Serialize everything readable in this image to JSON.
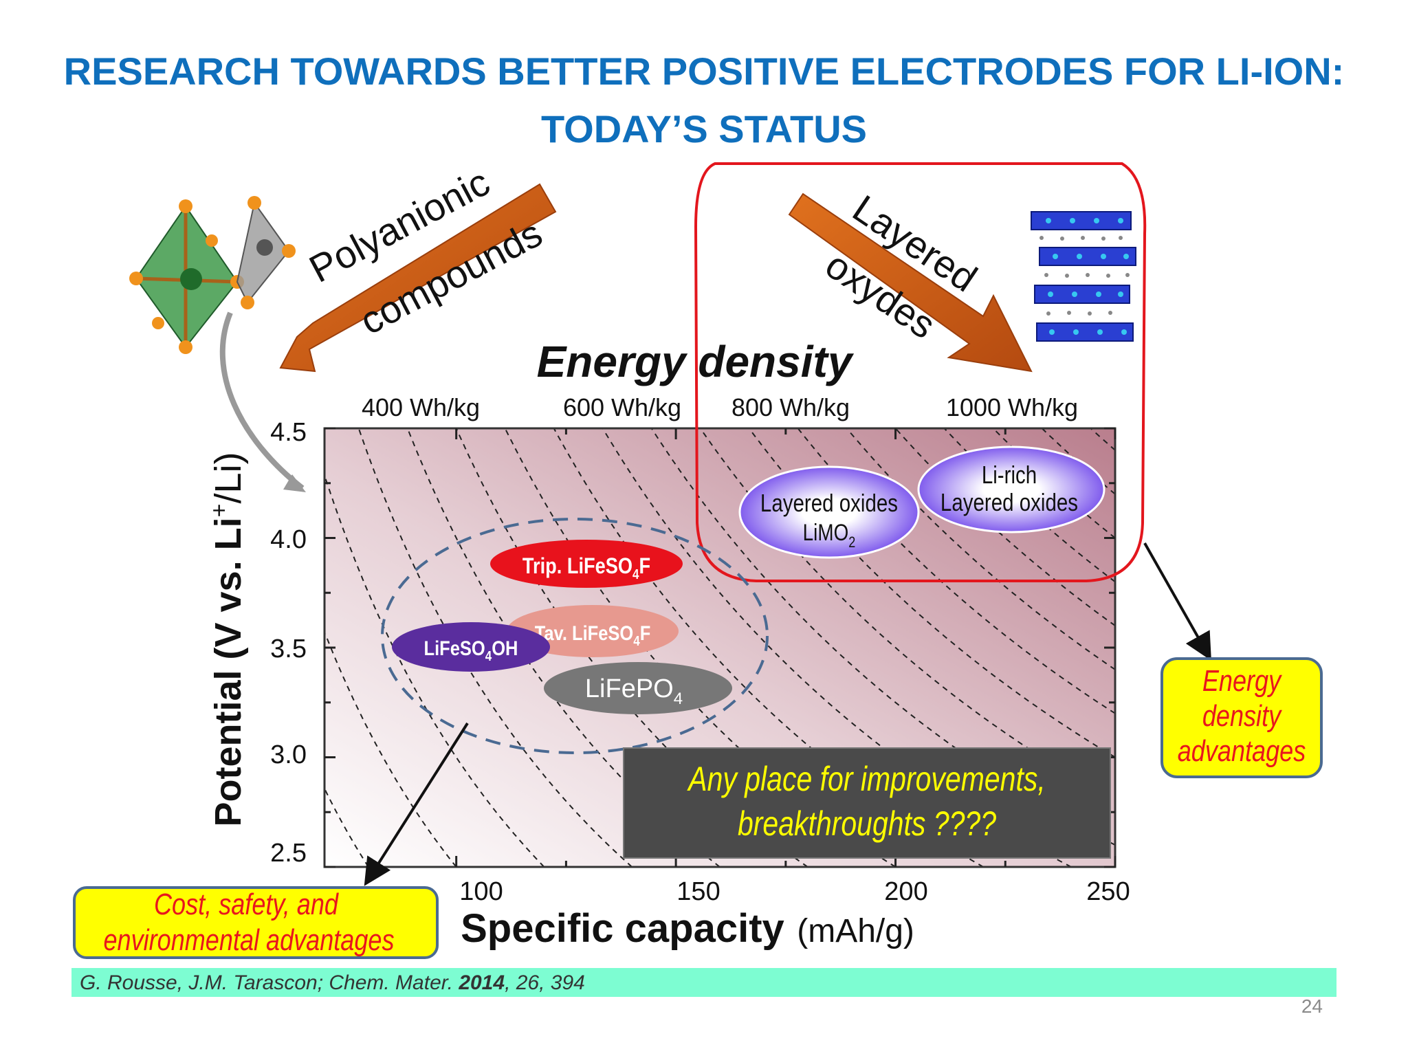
{
  "slide": {
    "title_line1": "RESEARCH TOWARDS BETTER POSITIVE ELECTRODES FOR LI-ION:",
    "title_line2": "TODAY’S STATUS",
    "page_number": "24"
  },
  "reference": {
    "authors": "G. Rousse, J.M. Tarascon; Chem. Mater.",
    "year": "2014",
    "rest": ", 26, 394",
    "color": "#7dfdd2"
  },
  "arrows": {
    "polyanionic_line1": "Polyanionic",
    "polyanionic_line2": "compounds",
    "layered_line1": "Layered",
    "layered_line2": "oxydes"
  },
  "chart_data": {
    "type": "scatter",
    "xlabel_bold": "Specific capacity",
    "xlabel_unit": "(mAh/g)",
    "ylabel_main": "Potential (V vs. Li",
    "ylabel_sup": "+",
    "ylabel_end": "/Li)",
    "xlim": [
      70,
      250
    ],
    "ylim": [
      2.5,
      4.5
    ],
    "xticks": [
      "100",
      "150",
      "200",
      "250"
    ],
    "yticks": [
      "2.5",
      "3.0",
      "3.5",
      "4.0",
      "4.5"
    ],
    "top_axis_title": "Energy density",
    "top_axis_labels": [
      "400 Wh/kg",
      "600 Wh/kg",
      "800 Wh/kg",
      "1000 Wh/kg"
    ],
    "materials": [
      {
        "name": "Trip. LiFeSO4F",
        "label_parts": [
          "Trip. LiFeSO",
          "4",
          "F"
        ],
        "x": 124,
        "y": 3.88,
        "color": "#e8121c",
        "text_color": "#ffffff"
      },
      {
        "name": "Tav. LiFeSO4F",
        "label_parts": [
          "Tav. LiFeSO",
          "4",
          "F"
        ],
        "x": 124,
        "y": 3.56,
        "color": "#e7998f",
        "text_color": "#ffffff"
      },
      {
        "name": "LiFeSO4OH",
        "label_parts": [
          "LiFeSO",
          "4",
          "OH"
        ],
        "x": 96,
        "y": 3.5,
        "color": "#5a2d9e",
        "text_color": "#ffffff"
      },
      {
        "name": "LiFePO4",
        "label_parts": [
          "LiFePO",
          "4",
          ""
        ],
        "x": 134,
        "y": 3.32,
        "color": "#777777",
        "text_color": "#ffffff"
      },
      {
        "name": "Layered oxides LiMO2",
        "label_parts": [
          "Layered oxides",
          "LiMO",
          "2"
        ],
        "x": 178,
        "y": 4.07,
        "color": "#5b2de8",
        "text_color": "#111111"
      },
      {
        "name": "Li-rich Layered oxides",
        "label_parts": [
          "Li-rich",
          "Layered oxides",
          ""
        ],
        "x": 221,
        "y": 4.2,
        "color": "#5b2de8",
        "text_color": "#111111"
      }
    ],
    "annotations": {
      "improvement_line1": "Any place for improvements,",
      "improvement_line2": "breakthroughts ????",
      "energy_box": [
        "Energy",
        "density",
        "advantages"
      ],
      "cost_box": [
        "Cost, safety, and",
        "environmental advantages"
      ]
    },
    "colors": {
      "highlight_box": "#e3161d",
      "annotation_text": "#e8161d",
      "yellow_box": "#ffff00",
      "improvement_text": "#ffff00",
      "arrow_fill": "#cc5f13",
      "dashed_ellipse": "#4a6a92"
    }
  }
}
